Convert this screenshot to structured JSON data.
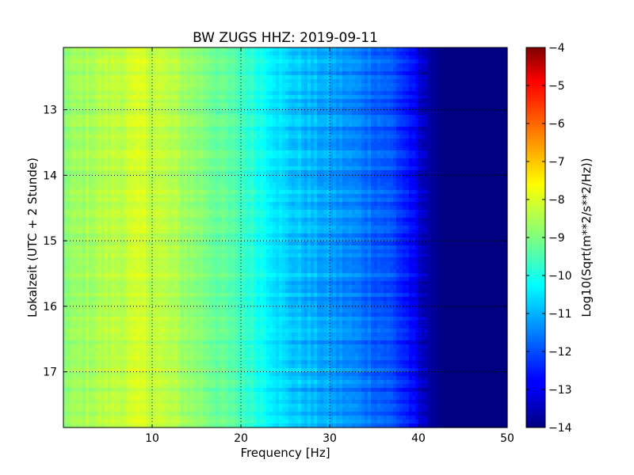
{
  "chart_data": {
    "type": "heatmap",
    "title": "BW ZUGS HHZ: 2019-09-11",
    "xlabel": "Frequency [Hz]",
    "ylabel": "Lokalzeit (UTC + 2 Stunde)",
    "xlim": [
      0,
      50
    ],
    "ylim": [
      17.85,
      12.05
    ],
    "y_inverted": true,
    "x_ticks": [
      10,
      20,
      30,
      40,
      50
    ],
    "x_tick_labels": [
      "10",
      "20",
      "30",
      "40",
      "50"
    ],
    "y_ticks": [
      13,
      14,
      15,
      16,
      17
    ],
    "y_tick_labels": [
      "13",
      "14",
      "15",
      "16",
      "17"
    ],
    "grid": true,
    "colormap": "jet",
    "colorbar": {
      "label": "Log10(Sqrt(m**2/s**2/Hz))",
      "min": -14,
      "max": -4,
      "ticks": [
        -4,
        -5,
        -6,
        -7,
        -8,
        -9,
        -10,
        -11,
        -12,
        -13,
        -14
      ],
      "tick_labels": [
        "−4",
        "−5",
        "−6",
        "−7",
        "−8",
        "−9",
        "−10",
        "−11",
        "−12",
        "−13",
        "−14"
      ]
    },
    "frequency_profile": {
      "frequency_hz": [
        0,
        3,
        6,
        9,
        12,
        16,
        20,
        23,
        25,
        28,
        31,
        34,
        37,
        39,
        41,
        43,
        46,
        50
      ],
      "log_psd": [
        -8.9,
        -8.6,
        -8.4,
        -8.2,
        -8.5,
        -9.0,
        -9.6,
        -10.2,
        -10.7,
        -11.0,
        -11.3,
        -11.6,
        -12.0,
        -12.6,
        -13.6,
        -14.0,
        -14.0,
        -14.0
      ]
    }
  }
}
